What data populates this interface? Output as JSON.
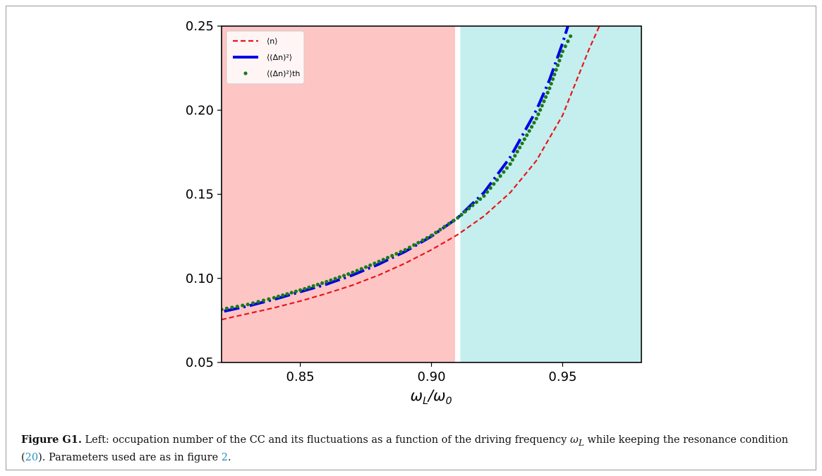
{
  "chart_data": {
    "type": "line",
    "xlabel": "ωL/ω0",
    "ylabel": "",
    "xlim": [
      0.82,
      0.98
    ],
    "ylim": [
      0.05,
      0.25
    ],
    "xticks": [
      "0.85",
      "0.90",
      "0.95"
    ],
    "xtick_values": [
      0.85,
      0.9,
      0.95
    ],
    "yticks": [
      "0.05",
      "0.10",
      "0.15",
      "0.20",
      "0.25"
    ],
    "ytick_values": [
      0.05,
      0.1,
      0.15,
      0.2,
      0.25
    ],
    "grid": false,
    "legend_position": "top-left",
    "regions": [
      {
        "x_from": 0.82,
        "x_to": 0.909,
        "color": "#fec5c5"
      },
      {
        "x_from": 0.911,
        "x_to": 0.98,
        "color": "#c5eeee"
      }
    ],
    "series": [
      {
        "name": "⟨n⟩",
        "style": "dashed",
        "color": "#e8161a",
        "x": [
          0.82,
          0.83,
          0.84,
          0.85,
          0.86,
          0.87,
          0.88,
          0.89,
          0.9,
          0.91,
          0.92,
          0.93,
          0.94,
          0.95,
          0.96,
          0.964
        ],
        "y": [
          0.0755,
          0.079,
          0.0825,
          0.0865,
          0.091,
          0.096,
          0.102,
          0.109,
          0.117,
          0.126,
          0.137,
          0.151,
          0.17,
          0.197,
          0.236,
          0.25
        ]
      },
      {
        "name": "⟨(Δn)²⟩",
        "style": "dashdot",
        "color": "#0000e6",
        "x": [
          0.821,
          0.83,
          0.84,
          0.85,
          0.86,
          0.87,
          0.88,
          0.89,
          0.9,
          0.91,
          0.92,
          0.93,
          0.94,
          0.945,
          0.95,
          0.952
        ],
        "y": [
          0.0805,
          0.0835,
          0.0875,
          0.092,
          0.0965,
          0.102,
          0.1085,
          0.116,
          0.125,
          0.136,
          0.151,
          0.172,
          0.2,
          0.218,
          0.24,
          0.25
        ]
      },
      {
        "name": "⟨(Δn)²⟩th",
        "style": "dotted-markers",
        "color": "#1b7a1b",
        "x": [
          0.82,
          0.83,
          0.84,
          0.85,
          0.86,
          0.87,
          0.88,
          0.89,
          0.9,
          0.91,
          0.92,
          0.93,
          0.94,
          0.945,
          0.95,
          0.953
        ],
        "y": [
          0.0815,
          0.0845,
          0.0885,
          0.093,
          0.098,
          0.1035,
          0.11,
          0.117,
          0.1255,
          0.136,
          0.149,
          0.168,
          0.195,
          0.213,
          0.235,
          0.244
        ]
      }
    ]
  },
  "caption": {
    "label": "Figure G1.",
    "text_before_omega": " Left: occupation number of the CC and its fluctuations as a function of the driving frequency ",
    "omega": "ω",
    "omega_sub": "L",
    "text_after_omega": " while keeping the resonance condition (",
    "eq_ref": "20",
    "text_mid": "). Parameters used are as in figure ",
    "fig_ref": "2",
    "text_end": "."
  }
}
